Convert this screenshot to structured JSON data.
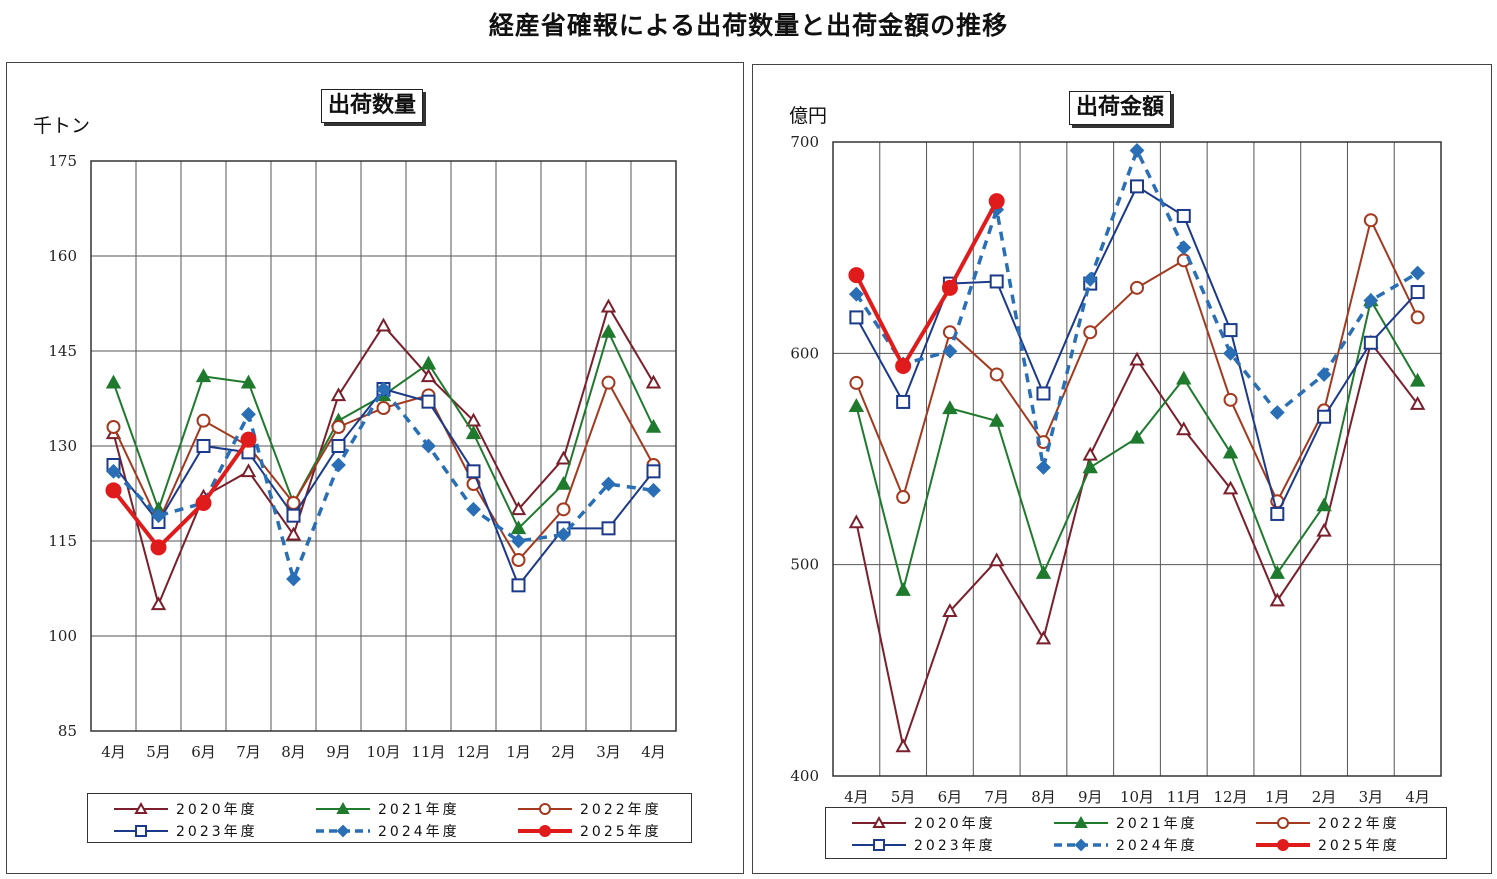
{
  "page": {
    "title": "経産省確報による出荷数量と出荷金額の推移"
  },
  "months": [
    "4月",
    "5月",
    "6月",
    "7月",
    "8月",
    "9月",
    "10月",
    "11月",
    "12月",
    "1月",
    "2月",
    "3月",
    "4月"
  ],
  "legend": [
    "2020年度",
    "2021年度",
    "2022年度",
    "2023年度",
    "2024年度",
    "2025年度"
  ],
  "chart_data": [
    {
      "type": "line",
      "title": "出荷数量",
      "ylabel": "千トン",
      "ylim": [
        85,
        175
      ],
      "yticks": [
        85,
        100,
        115,
        130,
        145,
        160,
        175
      ],
      "grid": true,
      "legend_position": "bottom",
      "categories": [
        "4月",
        "5月",
        "6月",
        "7月",
        "8月",
        "9月",
        "10月",
        "11月",
        "12月",
        "1月",
        "2月",
        "3月",
        "4月"
      ],
      "series": [
        {
          "name": "2020年度",
          "color": "#7a1f2b",
          "marker": "triangle-open",
          "dash": false,
          "values": [
            132,
            105,
            122,
            126,
            116,
            138,
            149,
            141,
            134,
            120,
            128,
            152,
            140
          ]
        },
        {
          "name": "2021年度",
          "color": "#1f7a2e",
          "marker": "triangle-filled",
          "dash": false,
          "values": [
            140,
            120,
            141,
            140,
            121,
            134,
            138,
            143,
            132,
            117,
            124,
            148,
            133
          ]
        },
        {
          "name": "2022年度",
          "color": "#a33a1f",
          "marker": "circle-open",
          "dash": false,
          "values": [
            133,
            118,
            134,
            130,
            121,
            133,
            136,
            138,
            124,
            112,
            120,
            140,
            127
          ]
        },
        {
          "name": "2023年度",
          "color": "#1c3a8a",
          "marker": "square-open",
          "dash": false,
          "values": [
            127,
            118,
            130,
            129,
            119,
            130,
            139,
            137,
            126,
            108,
            117,
            117,
            126
          ]
        },
        {
          "name": "2024年度",
          "color": "#2a6fb5",
          "marker": "diamond-filled",
          "dash": true,
          "values": [
            126,
            119,
            121,
            135,
            109,
            127,
            139,
            130,
            120,
            115,
            116,
            124,
            123
          ]
        },
        {
          "name": "2025年度",
          "color": "#e01b1b",
          "marker": "circle-filled",
          "dash": false,
          "bold": true,
          "values": [
            123,
            114,
            121,
            131,
            null,
            null,
            null,
            null,
            null,
            null,
            null,
            null,
            null
          ]
        }
      ]
    },
    {
      "type": "line",
      "title": "出荷金額",
      "ylabel": "億円",
      "ylim": [
        400,
        700
      ],
      "yticks": [
        400,
        500,
        600,
        700
      ],
      "grid": true,
      "legend_position": "bottom",
      "categories": [
        "4月",
        "5月",
        "6月",
        "7月",
        "8月",
        "9月",
        "10月",
        "11月",
        "12月",
        "1月",
        "2月",
        "3月",
        "4月"
      ],
      "series": [
        {
          "name": "2020年度",
          "color": "#7a1f2b",
          "marker": "triangle-open",
          "dash": false,
          "values": [
            520,
            414,
            478,
            502,
            465,
            552,
            597,
            564,
            536,
            483,
            516,
            605,
            576
          ]
        },
        {
          "name": "2021年度",
          "color": "#1f7a2e",
          "marker": "triangle-filled",
          "dash": false,
          "values": [
            575,
            488,
            574,
            568,
            496,
            546,
            560,
            588,
            553,
            496,
            528,
            625,
            587
          ]
        },
        {
          "name": "2022年度",
          "color": "#a33a1f",
          "marker": "circle-open",
          "dash": false,
          "values": [
            586,
            532,
            610,
            590,
            558,
            610,
            631,
            644,
            578,
            530,
            573,
            663,
            617
          ]
        },
        {
          "name": "2023年度",
          "color": "#1c3a8a",
          "marker": "square-open",
          "dash": false,
          "values": [
            617,
            577,
            633,
            634,
            581,
            633,
            679,
            665,
            611,
            524,
            570,
            605,
            629
          ]
        },
        {
          "name": "2024年度",
          "color": "#2a6fb5",
          "marker": "diamond-filled",
          "dash": true,
          "values": [
            628,
            595,
            601,
            668,
            546,
            635,
            696,
            650,
            600,
            572,
            590,
            625,
            638
          ]
        },
        {
          "name": "2025年度",
          "color": "#e01b1b",
          "marker": "circle-filled",
          "dash": false,
          "bold": true,
          "values": [
            637,
            594,
            631,
            672,
            null,
            null,
            null,
            null,
            null,
            null,
            null,
            null,
            null
          ]
        }
      ]
    }
  ]
}
